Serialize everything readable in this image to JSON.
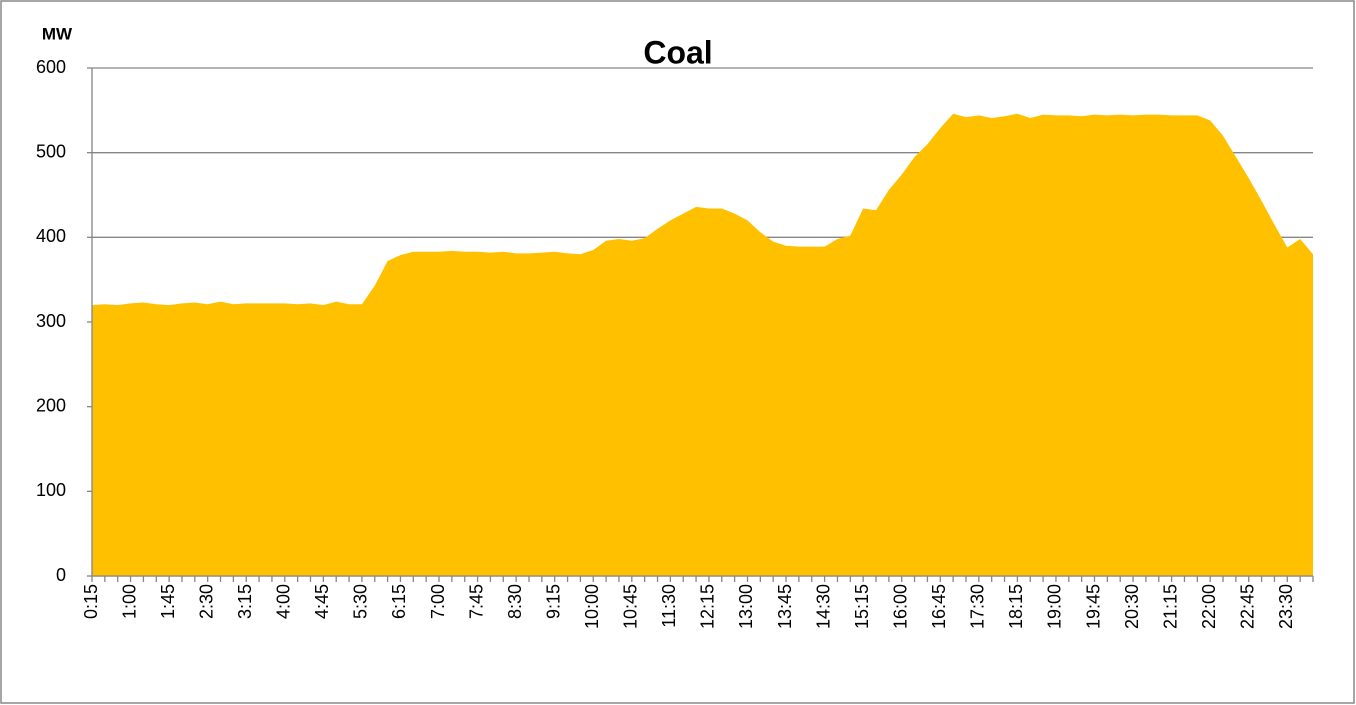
{
  "chart_data": {
    "type": "area",
    "title": "Coal",
    "y_label": "MW",
    "categories": [
      "0:15",
      null,
      null,
      "1:00",
      null,
      null,
      "1:45",
      null,
      null,
      "2:30",
      null,
      null,
      "3:15",
      null,
      null,
      "4:00",
      null,
      null,
      "4:45",
      null,
      null,
      "5:30",
      null,
      null,
      "6:15",
      null,
      null,
      "7:00",
      null,
      null,
      "7:45",
      null,
      null,
      "8:30",
      null,
      null,
      "9:15",
      null,
      null,
      "10:00",
      null,
      null,
      "10:45",
      null,
      null,
      "11:30",
      null,
      null,
      "12:15",
      null,
      null,
      "13:00",
      null,
      null,
      "13:45",
      null,
      null,
      "14:30",
      null,
      null,
      "15:15",
      null,
      null,
      "16:00",
      null,
      null,
      "16:45",
      null,
      null,
      "17:30",
      null,
      null,
      "18:15",
      null,
      null,
      "19:00",
      null,
      null,
      "19:45",
      null,
      null,
      "20:30",
      null,
      null,
      "21:15",
      null,
      null,
      "22:00",
      null,
      null,
      "22:45",
      null,
      null,
      "23:30",
      null,
      null
    ],
    "values": [
      320,
      321,
      320,
      322,
      323,
      321,
      320,
      322,
      323,
      321,
      324,
      321,
      322,
      322,
      322,
      322,
      321,
      322,
      320,
      324,
      321,
      321,
      343,
      372,
      379,
      383,
      383,
      383,
      384,
      383,
      383,
      382,
      383,
      381,
      381,
      382,
      383,
      381,
      380,
      385,
      396,
      398,
      396,
      399,
      410,
      420,
      428,
      436,
      434,
      434,
      428,
      420,
      406,
      395,
      390,
      389,
      389,
      389,
      398,
      402,
      434,
      432,
      456,
      474,
      495,
      510,
      529,
      546,
      542,
      544,
      541,
      543,
      546,
      541,
      545,
      544,
      544,
      543,
      545,
      544,
      545,
      544,
      545,
      545,
      544,
      544,
      544,
      538,
      520,
      495,
      470,
      443,
      415,
      388,
      398,
      380
    ],
    "color": "#ffc000",
    "ylim": [
      0,
      600
    ],
    "yticks": [
      0,
      100,
      200,
      300,
      400,
      500,
      600
    ],
    "grid": true
  }
}
